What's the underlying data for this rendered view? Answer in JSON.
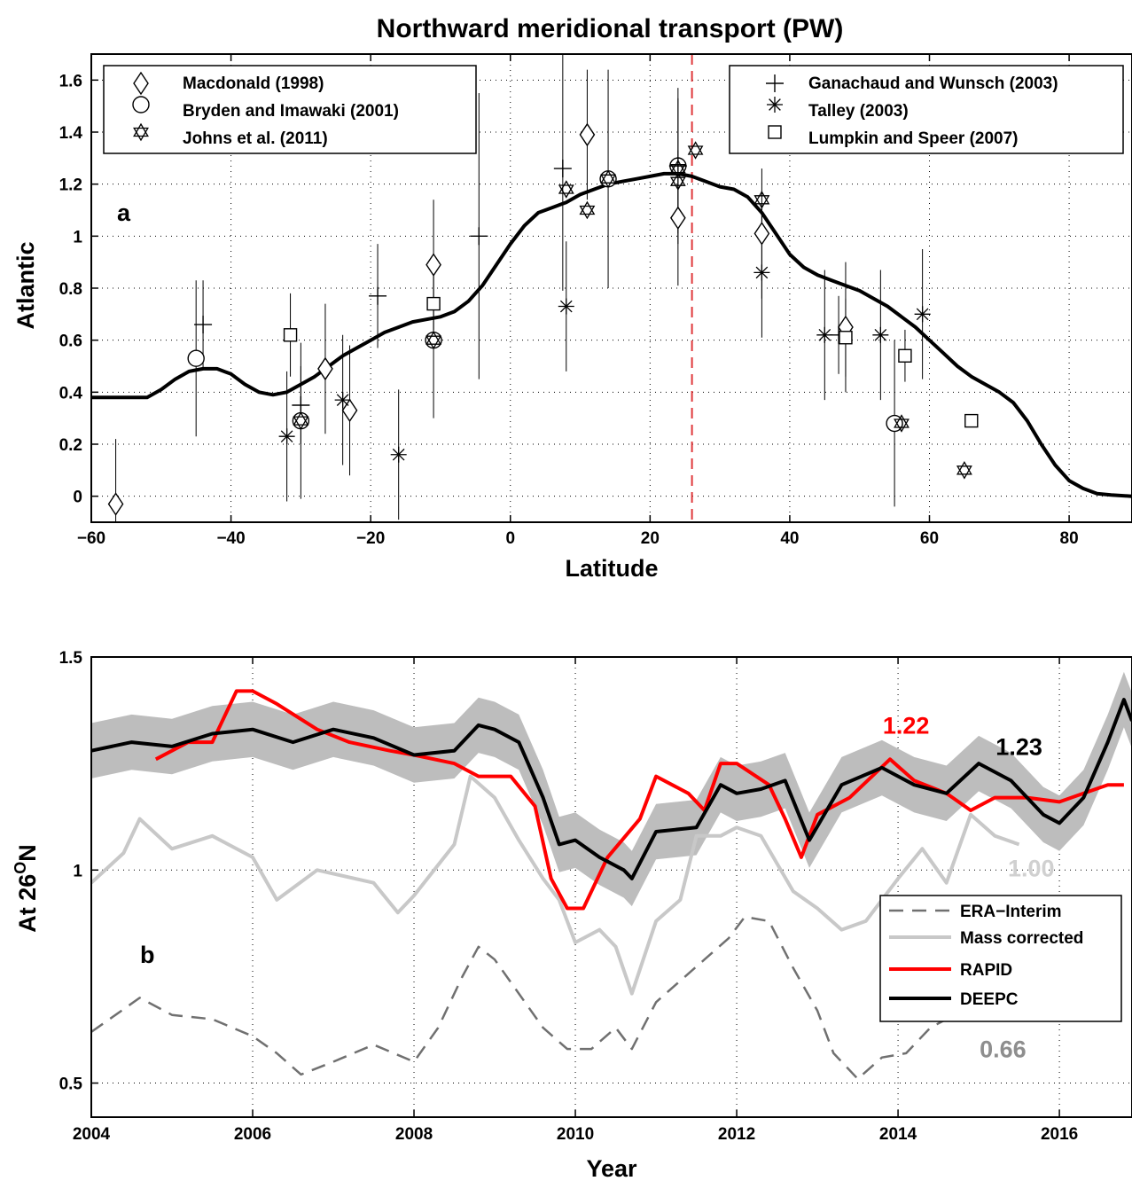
{
  "chart_data": [
    {
      "type": "line",
      "title": "Northward meridional transport (PW)",
      "xlabel": "Latitude",
      "ylabel": "Atlantic",
      "panel_label": "a",
      "xlim": [
        -60,
        89
      ],
      "ylim": [
        -0.1,
        1.7
      ],
      "xticks": [
        -60,
        -40,
        -20,
        0,
        20,
        40,
        60,
        80
      ],
      "yticks": [
        0,
        0.2,
        0.4,
        0.6,
        0.8,
        1,
        1.2,
        1.4,
        1.6
      ],
      "xtick_labels": [
        "−60",
        "−40",
        "−20",
        "0",
        "20",
        "40",
        "60",
        "80"
      ],
      "ytick_labels": [
        "0",
        "0.2",
        "0.4",
        "0.6",
        "0.8",
        "1",
        "1.2",
        "1.4",
        "1.6"
      ],
      "grid": true,
      "reference_line": {
        "x": 26,
        "color": "#e0393b",
        "style": "dashed"
      },
      "series": [
        {
          "kind": "line",
          "color": "#000000",
          "x": [
            -60,
            -52,
            -50,
            -48,
            -46,
            -44,
            -42,
            -40,
            -38,
            -36,
            -34,
            -32,
            -30,
            -28,
            -26,
            -24,
            -22,
            -20,
            -18,
            -16,
            -14,
            -12,
            -10,
            -8,
            -6,
            -4,
            -2,
            0,
            2,
            4,
            6,
            8,
            10,
            12,
            14,
            16,
            18,
            20,
            22,
            24,
            26,
            28,
            30,
            32,
            34,
            36,
            38,
            40,
            42,
            44,
            46,
            48,
            50,
            52,
            54,
            56,
            58,
            60,
            62,
            64,
            66,
            68,
            70,
            72,
            74,
            76,
            78,
            80,
            82,
            84,
            86,
            89
          ],
          "y": [
            0.38,
            0.38,
            0.41,
            0.45,
            0.48,
            0.49,
            0.49,
            0.47,
            0.43,
            0.4,
            0.39,
            0.4,
            0.43,
            0.46,
            0.5,
            0.54,
            0.57,
            0.6,
            0.63,
            0.65,
            0.67,
            0.68,
            0.69,
            0.71,
            0.75,
            0.81,
            0.89,
            0.97,
            1.04,
            1.09,
            1.11,
            1.13,
            1.16,
            1.18,
            1.2,
            1.21,
            1.22,
            1.23,
            1.24,
            1.24,
            1.23,
            1.21,
            1.19,
            1.18,
            1.15,
            1.09,
            1.01,
            0.93,
            0.88,
            0.85,
            0.83,
            0.81,
            0.79,
            0.76,
            0.73,
            0.69,
            0.65,
            0.6,
            0.55,
            0.5,
            0.46,
            0.43,
            0.4,
            0.36,
            0.29,
            0.2,
            0.12,
            0.06,
            0.03,
            0.01,
            0.005,
            0.0
          ]
        },
        {
          "name": "Macdonald (1998)",
          "marker": "diamond",
          "points": [
            {
              "x": -56.5,
              "y": -0.03,
              "err": 0.25
            },
            {
              "x": -26.5,
              "y": 0.49,
              "err": 0.25
            },
            {
              "x": -23,
              "y": 0.33,
              "err": 0.25
            },
            {
              "x": -11,
              "y": 0.89,
              "err": 0.25
            },
            {
              "x": 11,
              "y": 1.39,
              "err": 0.25
            },
            {
              "x": 24,
              "y": 1.07,
              "err": 0.26
            },
            {
              "x": 36,
              "y": 1.01,
              "err": 0.25
            },
            {
              "x": 48,
              "y": 0.65,
              "err": 0.25
            }
          ]
        },
        {
          "name": "Bryden and Imawaki (2001)",
          "marker": "circle",
          "points": [
            {
              "x": -45,
              "y": 0.53,
              "err": 0.3
            },
            {
              "x": -30,
              "y": 0.29,
              "err": 0.3
            },
            {
              "x": -11,
              "y": 0.6,
              "err": 0.3
            },
            {
              "x": 14,
              "y": 1.22,
              "err": 0.42
            },
            {
              "x": 24,
              "y": 1.27,
              "err": 0.3
            },
            {
              "x": 55,
              "y": 0.28,
              "err": 0.32
            }
          ]
        },
        {
          "name": "Johns et al. (2011)",
          "marker": "star",
          "points": [
            {
              "x": -30,
              "y": 0.29
            },
            {
              "x": -11,
              "y": 0.6
            },
            {
              "x": 8,
              "y": 1.18
            },
            {
              "x": 11,
              "y": 1.1
            },
            {
              "x": 14,
              "y": 1.22
            },
            {
              "x": 24,
              "y": 1.21
            },
            {
              "x": 24,
              "y": 1.26
            },
            {
              "x": 26.5,
              "y": 1.33
            },
            {
              "x": 36,
              "y": 1.14
            },
            {
              "x": 56,
              "y": 0.28
            },
            {
              "x": 65,
              "y": 0.1
            }
          ]
        },
        {
          "name": "Ganachaud and Wunsch (2003)",
          "marker": "plus",
          "points": [
            {
              "x": -44,
              "y": 0.66,
              "err": 0.17
            },
            {
              "x": -30,
              "y": 0.35,
              "err": 0.15
            },
            {
              "x": -19,
              "y": 0.77,
              "err": 0.2
            },
            {
              "x": -4.5,
              "y": 1.0,
              "err": 0.55
            },
            {
              "x": 7.5,
              "y": 1.26,
              "err": 0.47
            },
            {
              "x": 24,
              "y": 1.27,
              "err": 0.26
            },
            {
              "x": 47,
              "y": 0.62,
              "err": 0.15
            }
          ]
        },
        {
          "name": "Talley (2003)",
          "marker": "asterisk",
          "points": [
            {
              "x": -32,
              "y": 0.23,
              "err": 0.25
            },
            {
              "x": -24,
              "y": 0.37,
              "err": 0.25
            },
            {
              "x": -16,
              "y": 0.16,
              "err": 0.25
            },
            {
              "x": 8,
              "y": 0.73,
              "err": 0.25
            },
            {
              "x": 36,
              "y": 0.86,
              "err": 0.25
            },
            {
              "x": 45,
              "y": 0.62,
              "err": 0.25
            },
            {
              "x": 53,
              "y": 0.62,
              "err": 0.25
            },
            {
              "x": 59,
              "y": 0.7,
              "err": 0.25
            }
          ]
        },
        {
          "name": "Lumpkin and Speer (2007)",
          "marker": "square",
          "points": [
            {
              "x": -31.5,
              "y": 0.62,
              "err": 0.16
            },
            {
              "x": -11,
              "y": 0.74,
              "err": 0.16
            },
            {
              "x": 48,
              "y": 0.61,
              "err": 0.15
            },
            {
              "x": 56.5,
              "y": 0.54,
              "err": 0.1
            },
            {
              "x": 66,
              "y": 0.29,
              "err": 0.02
            }
          ]
        }
      ]
    },
    {
      "type": "line",
      "xlabel": "Year",
      "ylabel": "At 26°N",
      "ylabel_parts": {
        "pre": "At 26",
        "sup": "O",
        "post": "N"
      },
      "panel_label": "b",
      "xlim": [
        2004,
        2016.9
      ],
      "ylim": [
        0.42,
        1.5
      ],
      "xticks": [
        2004,
        2006,
        2008,
        2010,
        2012,
        2014,
        2016
      ],
      "yticks": [
        0.5,
        1,
        1.5
      ],
      "xtick_labels": [
        "2004",
        "2006",
        "2008",
        "2010",
        "2012",
        "2014",
        "2016"
      ],
      "ytick_labels": [
        "0.5",
        "1",
        "1.5"
      ],
      "grid": true,
      "annotations": [
        {
          "text": "1.22",
          "x": 2014.1,
          "y": 1.32,
          "color": "#ff0000"
        },
        {
          "text": "1.23",
          "x": 2015.5,
          "y": 1.27,
          "color": "#000000"
        },
        {
          "text": "1.00",
          "x": 2015.65,
          "y": 0.985,
          "color": "#d0d0d0"
        },
        {
          "text": "0.66",
          "x": 2015.3,
          "y": 0.56,
          "color": "#8e8e8e"
        }
      ],
      "series": [
        {
          "name": "DEEPC",
          "color": "#000000",
          "band_halfwidth": 0.065,
          "x": [
            2004.0,
            2004.5,
            2005.0,
            2005.5,
            2006.0,
            2006.5,
            2007.0,
            2007.5,
            2008.0,
            2008.5,
            2008.8,
            2009.0,
            2009.3,
            2009.6,
            2009.8,
            2010.0,
            2010.3,
            2010.6,
            2010.7,
            2011.0,
            2011.5,
            2011.8,
            2012.0,
            2012.3,
            2012.6,
            2012.9,
            2013.3,
            2013.8,
            2014.2,
            2014.6,
            2015.0,
            2015.4,
            2015.8,
            2016.0,
            2016.3,
            2016.6,
            2016.8,
            2016.9
          ],
          "y": [
            1.28,
            1.3,
            1.29,
            1.32,
            1.33,
            1.3,
            1.33,
            1.31,
            1.27,
            1.28,
            1.34,
            1.33,
            1.3,
            1.17,
            1.06,
            1.07,
            1.03,
            1.0,
            0.98,
            1.09,
            1.1,
            1.2,
            1.18,
            1.19,
            1.21,
            1.07,
            1.2,
            1.24,
            1.2,
            1.18,
            1.25,
            1.21,
            1.13,
            1.11,
            1.17,
            1.3,
            1.4,
            1.35
          ]
        },
        {
          "name": "RAPID",
          "color": "#ff0000",
          "x": [
            2004.8,
            2005.2,
            2005.5,
            2005.8,
            2006.0,
            2006.3,
            2006.8,
            2007.2,
            2007.7,
            2008.0,
            2008.5,
            2008.8,
            2009.2,
            2009.5,
            2009.7,
            2009.9,
            2010.1,
            2010.4,
            2010.8,
            2011.0,
            2011.4,
            2011.6,
            2011.8,
            2012.0,
            2012.4,
            2012.6,
            2012.8,
            2013.0,
            2013.4,
            2013.9,
            2014.2,
            2014.6,
            2014.9,
            2015.2,
            2015.6,
            2016.0,
            2016.3,
            2016.6,
            2016.8
          ],
          "y": [
            1.26,
            1.3,
            1.3,
            1.42,
            1.42,
            1.39,
            1.33,
            1.3,
            1.28,
            1.27,
            1.25,
            1.22,
            1.22,
            1.15,
            0.98,
            0.91,
            0.91,
            1.03,
            1.12,
            1.22,
            1.18,
            1.14,
            1.25,
            1.25,
            1.2,
            1.12,
            1.03,
            1.13,
            1.17,
            1.26,
            1.21,
            1.18,
            1.14,
            1.17,
            1.17,
            1.16,
            1.18,
            1.2,
            1.2
          ]
        },
        {
          "name": "Mass corrected",
          "color": "#c8c8c8",
          "x": [
            2004.0,
            2004.4,
            2004.6,
            2005.0,
            2005.5,
            2006.0,
            2006.3,
            2006.8,
            2007.5,
            2007.8,
            2008.0,
            2008.5,
            2008.7,
            2009.0,
            2009.3,
            2009.6,
            2009.8,
            2010.0,
            2010.3,
            2010.5,
            2010.7,
            2011.0,
            2011.3,
            2011.5,
            2011.8,
            2012.0,
            2012.3,
            2012.7,
            2013.0,
            2013.3,
            2013.6,
            2014.0,
            2014.3,
            2014.6,
            2014.9,
            2015.2,
            2015.5
          ],
          "y": [
            0.97,
            1.04,
            1.12,
            1.05,
            1.08,
            1.03,
            0.93,
            1.0,
            0.97,
            0.9,
            0.94,
            1.06,
            1.22,
            1.17,
            1.07,
            0.98,
            0.93,
            0.83,
            0.86,
            0.82,
            0.71,
            0.88,
            0.93,
            1.08,
            1.08,
            1.1,
            1.08,
            0.95,
            0.91,
            0.86,
            0.88,
            0.98,
            1.05,
            0.97,
            1.13,
            1.08,
            1.06
          ]
        },
        {
          "name": "ERA−Interim",
          "color": "#707070",
          "dashed": true,
          "x": [
            2004.0,
            2004.3,
            2004.6,
            2005.0,
            2005.5,
            2006.0,
            2006.3,
            2006.6,
            2007.0,
            2007.5,
            2008.0,
            2008.3,
            2008.6,
            2008.8,
            2009.0,
            2009.3,
            2009.6,
            2009.9,
            2010.2,
            2010.5,
            2010.7,
            2011.0,
            2011.3,
            2011.6,
            2011.9,
            2012.1,
            2012.4,
            2012.7,
            2013.0,
            2013.2,
            2013.5,
            2013.8,
            2014.1,
            2014.4,
            2014.7
          ],
          "y": [
            0.62,
            0.66,
            0.7,
            0.66,
            0.65,
            0.61,
            0.57,
            0.52,
            0.55,
            0.59,
            0.55,
            0.63,
            0.75,
            0.82,
            0.79,
            0.71,
            0.63,
            0.58,
            0.58,
            0.63,
            0.58,
            0.69,
            0.74,
            0.79,
            0.84,
            0.89,
            0.88,
            0.77,
            0.67,
            0.57,
            0.51,
            0.56,
            0.57,
            0.63,
            0.66
          ]
        }
      ],
      "legend_order": [
        "ERA−Interim",
        "Mass corrected",
        "RAPID",
        "DEEPC"
      ]
    }
  ]
}
